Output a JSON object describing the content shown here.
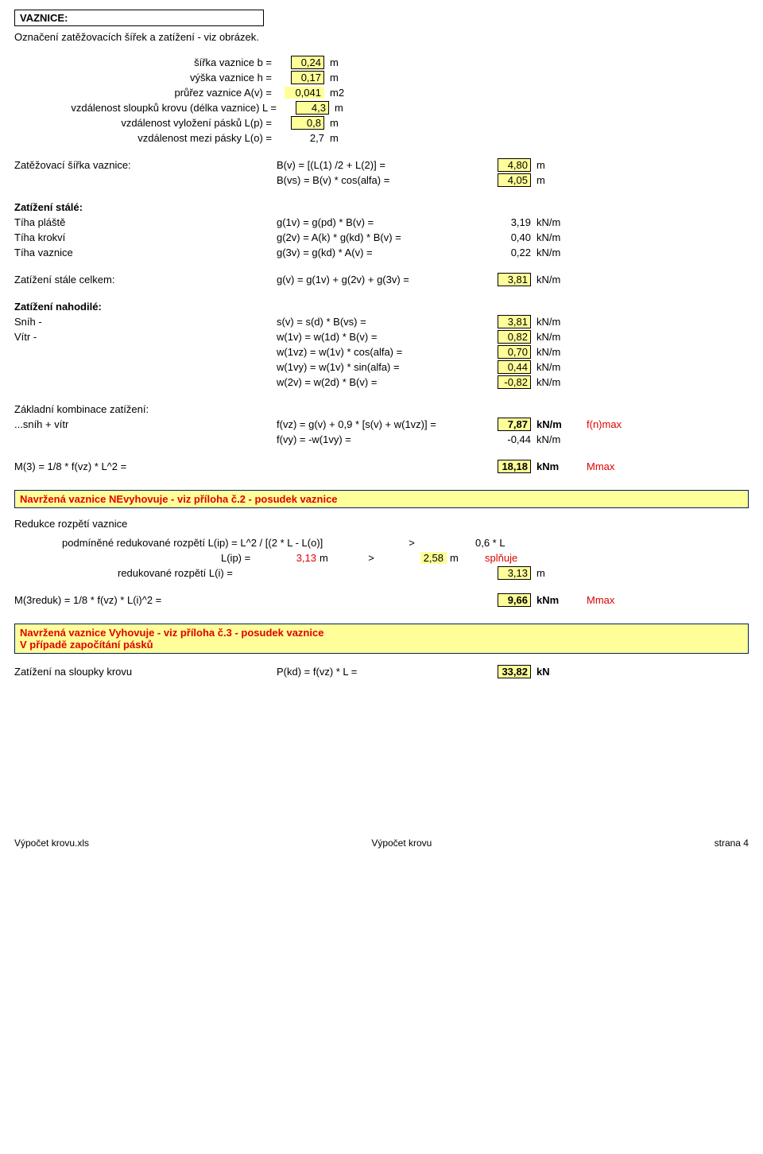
{
  "header": {
    "title": "VAZNICE:",
    "subtitle": "Označení zatěžovacích šířek a zatížení - viz obrázek."
  },
  "geom": [
    {
      "label": "šířka vaznice b =",
      "val": "0,24",
      "unit": "m",
      "yellow": true,
      "box": true
    },
    {
      "label": "výška vaznice h =",
      "val": "0,17",
      "unit": "m",
      "yellow": true,
      "box": true
    },
    {
      "label": "průřez vaznice A(v) =",
      "val": "0,041",
      "unit": "m2",
      "yellow": true,
      "box": false
    },
    {
      "label": "vzdálenost sloupků krovu (délka vaznice) L =",
      "val": "4,3",
      "unit": "m",
      "yellow": true,
      "box": true,
      "full": true
    },
    {
      "label": "vzdálenost vyložení pásků L(p) =",
      "val": "0,8",
      "unit": "m",
      "yellow": true,
      "box": true
    },
    {
      "label": "vzdálenost mezi pásky L(o) =",
      "val": "2,7",
      "unit": "m",
      "yellow": false,
      "box": false
    }
  ],
  "sirka": {
    "title": "Zatěžovací šířka vaznice:",
    "rows": [
      {
        "formula": "B(v) = [(L(1) /2 + L(2)] =",
        "val": "4,80",
        "unit": "m",
        "box": true,
        "yellow": true
      },
      {
        "formula": "B(vs) = B(v) * cos(alfa) =",
        "val": "4,05",
        "unit": "m",
        "box": true,
        "yellow": true
      }
    ]
  },
  "stale": {
    "title": "Zatížení stálé:",
    "rows": [
      {
        "label": "Tíha pláště",
        "formula": "g(1v) = g(pd) * B(v) =",
        "val": "3,19",
        "unit": "kN/m"
      },
      {
        "label": "Tíha krokví",
        "formula": "g(2v) = A(k) * g(kd) * B(v) =",
        "val": "0,40",
        "unit": "kN/m"
      },
      {
        "label": "Tíha vaznice",
        "formula": "g(3v) = g(kd) * A(v) =",
        "val": "0,22",
        "unit": "kN/m"
      }
    ]
  },
  "celkem": {
    "label": "Zatížení stále celkem:",
    "formula": "g(v) = g(1v) + g(2v) + g(3v) =",
    "val": "3,81",
    "unit": "kN/m"
  },
  "nahodile": {
    "title": "Zatížení nahodilé:",
    "rows": [
      {
        "label": "Sníh -",
        "formula": "s(v) = s(d) * B(vs) =",
        "val": "3,81",
        "unit": "kN/m",
        "box": true,
        "yellow": true
      },
      {
        "label": "Vítr -",
        "formula": "w(1v) = w(1d) * B(v) =",
        "val": "0,82",
        "unit": "kN/m",
        "box": true,
        "yellow": true
      },
      {
        "label": "",
        "formula": "w(1vz) = w(1v) * cos(alfa) =",
        "val": "0,70",
        "unit": "kN/m",
        "box": true,
        "yellow": true
      },
      {
        "label": "",
        "formula": "w(1vy) = w(1v) * sin(alfa) =",
        "val": "0,44",
        "unit": "kN/m",
        "box": true,
        "yellow": true
      },
      {
        "label": "",
        "formula": "w(2v) = w(2d) * B(v) =",
        "val": "-0,82",
        "unit": "kN/m",
        "box": true,
        "yellow": true
      }
    ]
  },
  "kombinace": {
    "title": "Základní kombinace zatížení:",
    "rows": [
      {
        "label": "...sníh + vítr",
        "formula": "f(vz) = g(v) + 0,9 * [s(v) + w(1vz)] =",
        "val": "7,87",
        "unit": "kN/m",
        "box": true,
        "yellow": true,
        "note": "f(n)max",
        "red": true,
        "bold": true
      },
      {
        "label": "",
        "formula": "f(vy) = -w(1vy) =",
        "val": "-0,44",
        "unit": "kN/m",
        "box": false
      }
    ]
  },
  "m3": {
    "label": "M(3) = 1/8 * f(vz) * L^2 =",
    "val": "18,18",
    "unit": "kNm",
    "note": "Mmax"
  },
  "bar1": "Navržená vaznice NEvyhovuje - viz příloha č.2 - posudek vaznice",
  "redukce": {
    "title": "Redukce rozpětí vaznice",
    "r1_label": "podmíněné redukované rozpětí L(ip) = L^2 / [(2 * L - L(o)]",
    "r1_gt": ">",
    "r1_right": "0,6 * L",
    "r2_label": "L(ip) =",
    "r2_val": "3,13",
    "r2_unit": "m",
    "r2_gt": ">",
    "r2_right": "2,58",
    "r2_runit": "m",
    "r2_note": "splňuje",
    "r3_label": "redukované rozpětí L(i) =",
    "r3_val": "3,13",
    "r3_unit": "m"
  },
  "m3r": {
    "label": "M(3reduk) = 1/8 * f(vz) * L(i)^2 =",
    "val": "9,66",
    "unit": "kNm",
    "note": "Mmax"
  },
  "bar2": {
    "line1": "Navržená vaznice Vyhovuje - viz příloha č.3 - posudek vaznice",
    "line2": "V případě započítání pásků"
  },
  "sloupky": {
    "label": "Zatížení na sloupky krovu",
    "formula": "P(kd) = f(vz) * L =",
    "val": "33,82",
    "unit": "kN"
  },
  "footer": {
    "left": "Výpočet krovu.xls",
    "center": "Výpočet krovu",
    "right": "strana 4"
  },
  "colors": {
    "yellow": "#ffff99",
    "red": "#e00000",
    "darkblue": "#002060"
  }
}
